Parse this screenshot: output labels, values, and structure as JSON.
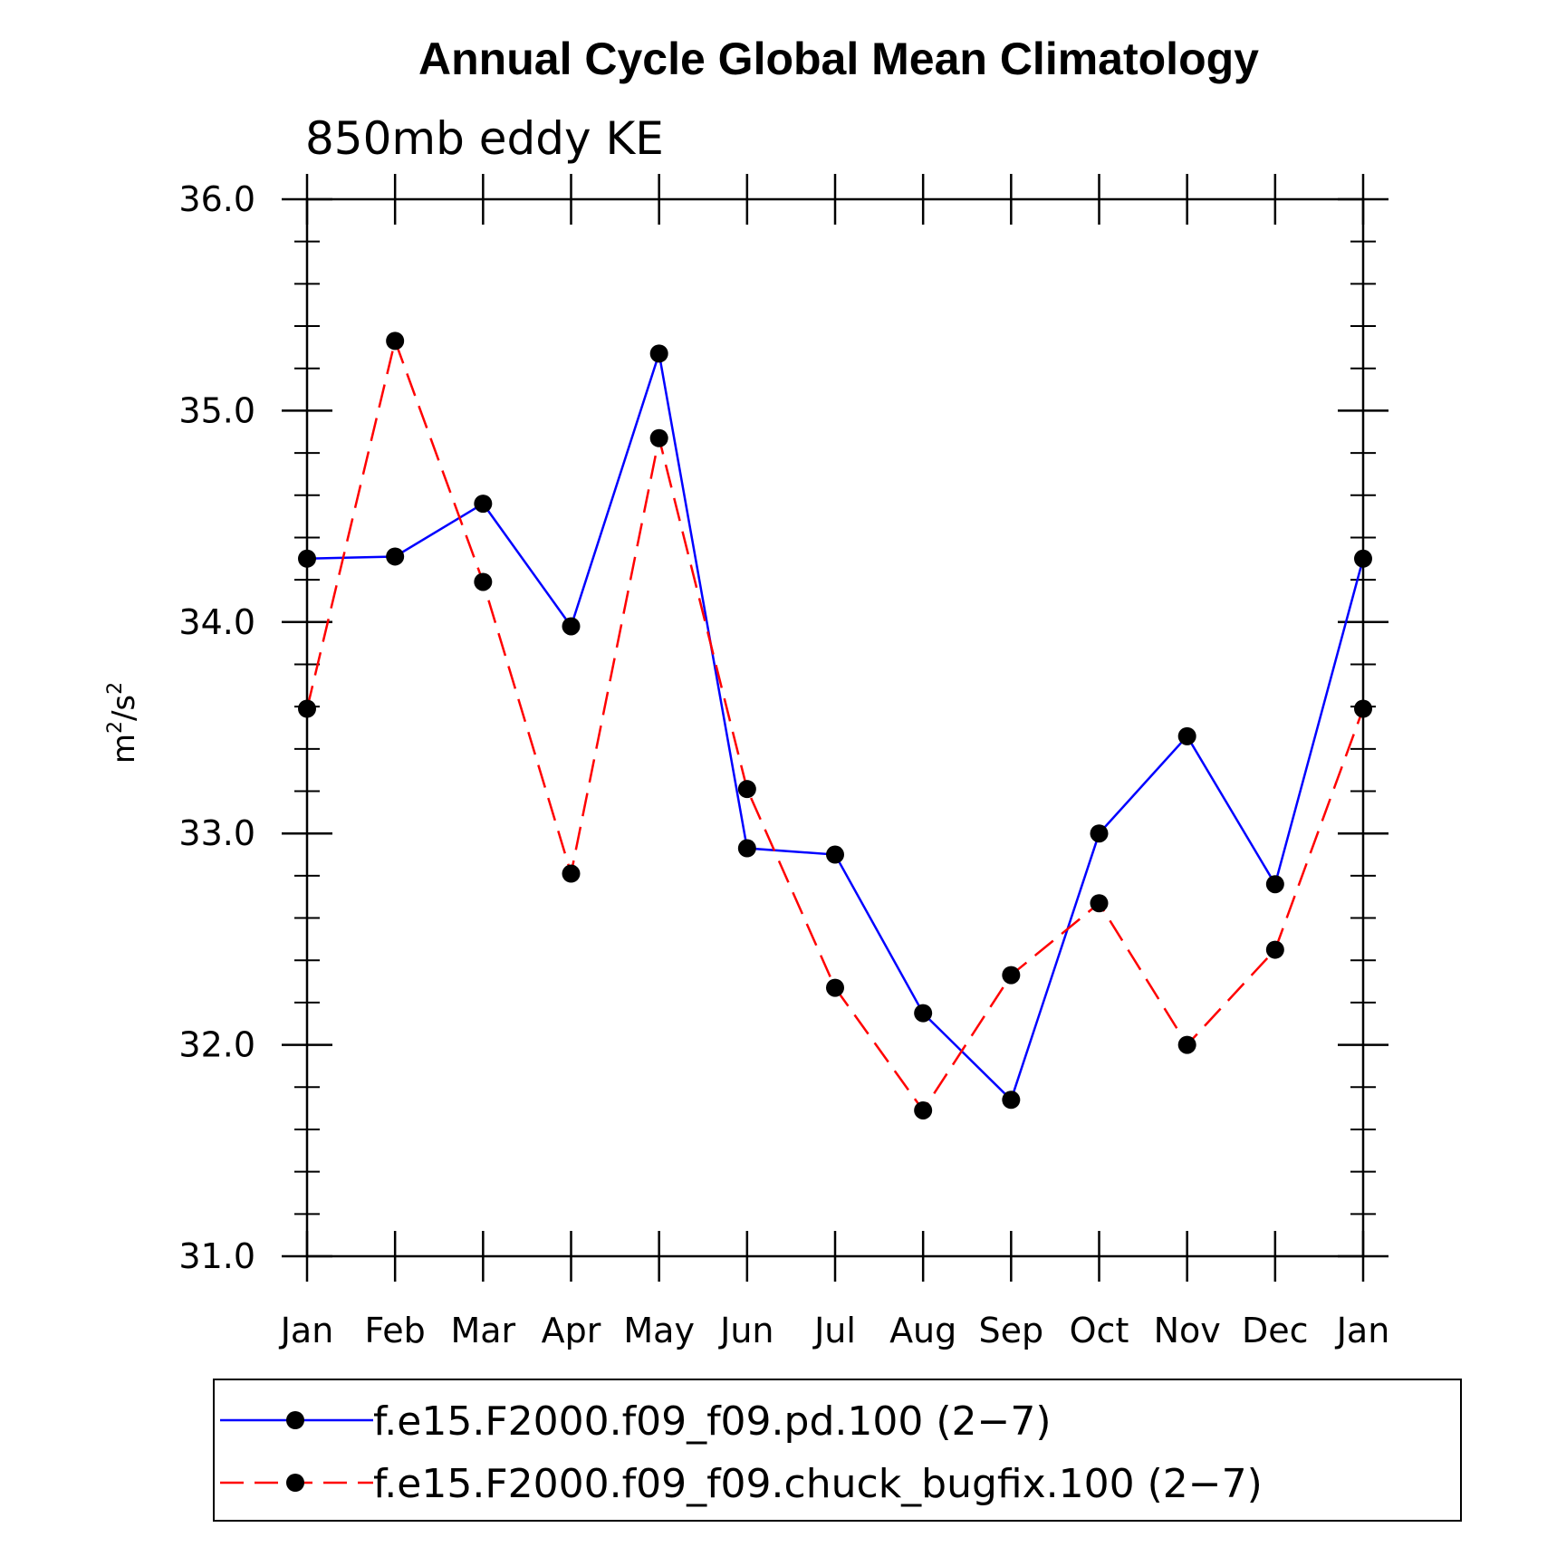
{
  "chart_data": {
    "type": "line",
    "title": "Annual Cycle Global Mean Climatology",
    "subtitle": "850mb eddy KE",
    "ylabel": "m",
    "ylabel_sup": "2",
    "ylabel_mid": "/s",
    "ylabel_sup2": "2",
    "xlabel": "",
    "categories": [
      "Jan",
      "Feb",
      "Mar",
      "Apr",
      "May",
      "Jun",
      "Jul",
      "Aug",
      "Sep",
      "Oct",
      "Nov",
      "Dec",
      "Jan"
    ],
    "ylim": [
      31.0,
      36.0
    ],
    "yticks": [
      "31.0",
      "32.0",
      "33.0",
      "34.0",
      "35.0",
      "36.0"
    ],
    "ytick_values": [
      31,
      32,
      33,
      34,
      35,
      36
    ],
    "series": [
      {
        "name": "f.e15.F2000.f09_f09.pd.100 (2−7)",
        "color": "#0000ff",
        "dash": "solid",
        "values": [
          34.3,
          34.31,
          34.56,
          33.98,
          35.27,
          32.93,
          32.9,
          32.15,
          31.74,
          33.0,
          33.46,
          32.76,
          34.3
        ]
      },
      {
        "name": "f.e15.F2000.f09_f09.chuck_bugfix.100 (2−7)",
        "color": "#ff0000",
        "dash": "dashed",
        "values": [
          33.59,
          35.33,
          34.19,
          32.81,
          34.87,
          33.21,
          32.27,
          31.69,
          32.33,
          32.67,
          32.0,
          32.45,
          33.59
        ]
      }
    ],
    "marker_color": "#000000",
    "legend_position": "bottom"
  }
}
